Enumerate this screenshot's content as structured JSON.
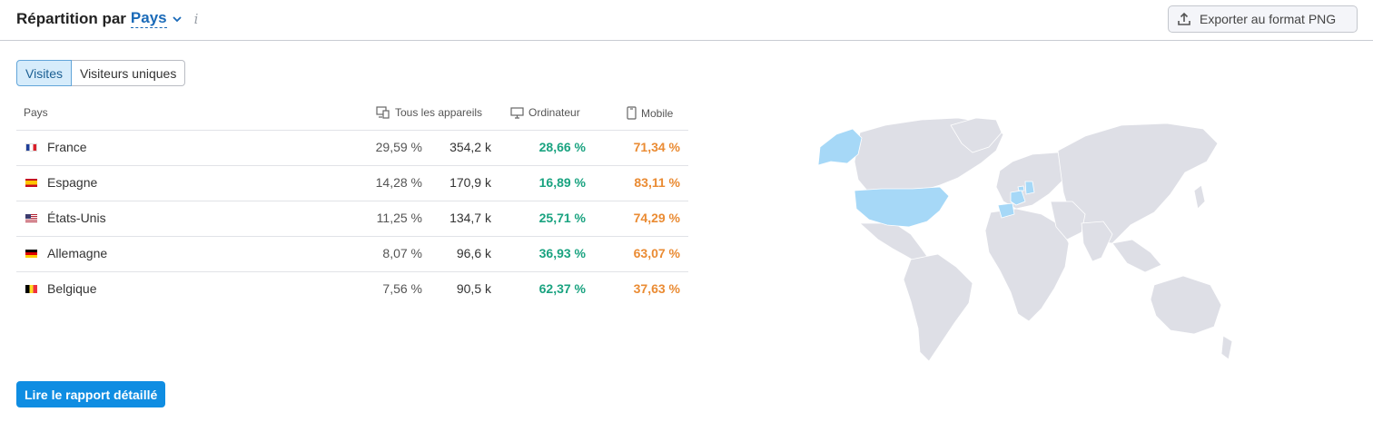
{
  "header": {
    "title_prefix": "Répartition par",
    "title_selector": "Pays",
    "info_glyph": "i",
    "export_label": "Exporter au format PNG"
  },
  "tabs": [
    {
      "label": "Visites",
      "active": true
    },
    {
      "label": "Visiteurs uniques",
      "active": false
    }
  ],
  "table": {
    "columns": {
      "country": "Pays",
      "all_devices": "Tous les appareils",
      "desktop": "Ordinateur",
      "mobile": "Mobile"
    },
    "rows": [
      {
        "country": "France",
        "share": "29,59 %",
        "visits": "354,2 k",
        "desktop": "28,66 %",
        "mobile": "71,34 %",
        "flag": "fr"
      },
      {
        "country": "Espagne",
        "share": "14,28 %",
        "visits": "170,9 k",
        "desktop": "16,89 %",
        "mobile": "83,11 %",
        "flag": "es"
      },
      {
        "country": "États-Unis",
        "share": "11,25 %",
        "visits": "134,7 k",
        "desktop": "25,71 %",
        "mobile": "74,29 %",
        "flag": "us"
      },
      {
        "country": "Allemagne",
        "share": "8,07 %",
        "visits": "96,6 k",
        "desktop": "36,93 %",
        "mobile": "63,07 %",
        "flag": "de"
      },
      {
        "country": "Belgique",
        "share": "7,56 %",
        "visits": "90,5 k",
        "desktop": "62,37 %",
        "mobile": "37,63 %",
        "flag": "be"
      }
    ]
  },
  "cta_label": "Lire le rapport détaillé",
  "map": {
    "highlighted_countries": [
      "United States",
      "Alaska",
      "France",
      "Spain",
      "Germany",
      "Belgium"
    ],
    "highlight_color": "#a6d8f7",
    "base_color": "#dedfe6"
  },
  "colors": {
    "accent": "#0f8de2",
    "desktop": "#1aa380",
    "mobile": "#ea8b33"
  }
}
